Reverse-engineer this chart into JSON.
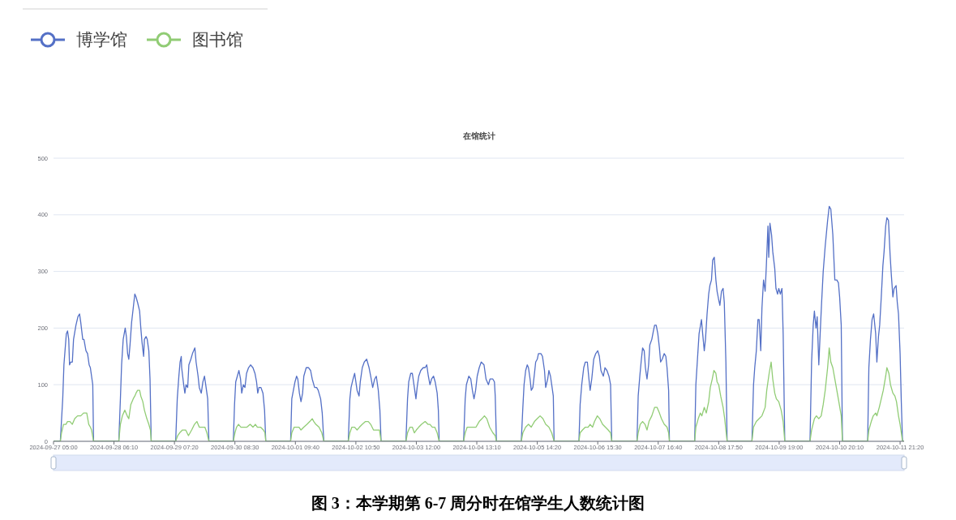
{
  "chart_data": {
    "type": "line",
    "title": "在馆统计",
    "series": [
      {
        "name": "博学馆",
        "color": "#5470c6",
        "x": [
          "2024-09-27T05:00",
          "2024-09-27T07:50",
          "2024-09-27T08:50",
          "2024-09-27T09:20",
          "2024-09-27T10:20",
          "2024-09-27T10:50",
          "2024-09-27T11:20",
          "2024-09-27T11:40",
          "2024-09-27T12:10",
          "2024-09-27T12:50",
          "2024-09-27T13:20",
          "2024-09-27T14:20",
          "2024-09-27T15:10",
          "2024-09-27T15:50",
          "2024-09-27T16:20",
          "2024-09-27T17:10",
          "2024-09-27T17:40",
          "2024-09-27T18:30",
          "2024-09-27T19:10",
          "2024-09-27T19:50",
          "2024-09-27T20:20",
          "2024-09-27T20:50",
          "2024-09-27T21:20",
          "2024-09-27T21:40",
          "2024-09-28T08:10",
          "2024-09-28T08:50",
          "2024-09-28T09:20",
          "2024-09-28T10:00",
          "2024-09-28T10:50",
          "2024-09-28T11:20",
          "2024-09-28T11:50",
          "2024-09-28T12:20",
          "2024-09-28T12:50",
          "2024-09-28T13:30",
          "2024-09-28T14:10",
          "2024-09-28T14:50",
          "2024-09-28T15:20",
          "2024-09-28T16:00",
          "2024-09-28T16:50",
          "2024-09-28T17:20",
          "2024-09-28T17:50",
          "2024-09-28T18:30",
          "2024-09-28T18:50",
          "2024-09-28T19:30",
          "2024-09-28T20:00",
          "2024-09-28T20:40",
          "2024-09-28T21:10",
          "2024-09-28T21:40",
          "2024-09-29T07:50",
          "2024-09-29T08:30",
          "2024-09-29T09:10",
          "2024-09-29T09:40",
          "2024-09-29T10:10",
          "2024-09-29T10:20",
          "2024-09-29T11:10",
          "2024-09-29T11:40",
          "2024-09-29T12:10",
          "2024-09-29T12:50",
          "2024-09-29T13:20",
          "2024-09-29T14:10",
          "2024-09-29T14:50",
          "2024-09-29T15:50",
          "2024-09-29T16:20",
          "2024-09-29T17:10",
          "2024-09-29T17:40",
          "2024-09-29T18:30",
          "2024-09-29T19:10",
          "2024-09-29T19:50",
          "2024-09-29T20:20",
          "2024-09-29T21:10",
          "2024-09-29T21:40",
          "2024-09-30T07:50",
          "2024-09-30T08:20",
          "2024-09-30T08:50",
          "2024-09-30T09:30",
          "2024-09-30T10:10",
          "2024-09-30T10:50",
          "2024-09-30T11:20",
          "2024-09-30T12:00",
          "2024-09-30T12:40",
          "2024-09-30T13:20",
          "2024-09-30T14:10",
          "2024-09-30T15:00",
          "2024-09-30T16:00",
          "2024-09-30T16:50",
          "2024-09-30T17:30",
          "2024-09-30T18:00",
          "2024-09-30T18:30",
          "2024-09-30T19:20",
          "2024-09-30T20:10",
          "2024-09-30T20:50",
          "2024-09-30T21:20",
          "2024-10-01T07:40",
          "2024-10-01T08:10",
          "2024-10-01T08:50",
          "2024-10-01T09:30",
          "2024-10-01T10:10",
          "2024-10-01T10:40",
          "2024-10-01T11:20",
          "2024-10-01T12:00",
          "2024-10-01T12:40",
          "2024-10-01T13:10",
          "2024-10-01T14:10",
          "2024-10-01T15:10",
          "2024-10-01T16:00",
          "2024-10-01T16:40",
          "2024-10-01T17:40",
          "2024-10-01T18:30",
          "2024-10-01T19:10",
          "2024-10-01T20:10",
          "2024-10-01T20:50",
          "2024-10-01T21:30",
          "2024-10-02T07:40",
          "2024-10-02T08:20",
          "2024-10-02T08:50",
          "2024-10-02T09:40",
          "2024-10-02T10:20",
          "2024-10-02T10:50",
          "2024-10-02T11:20",
          "2024-10-02T12:10",
          "2024-10-02T12:40",
          "2024-10-02T13:30",
          "2024-10-02T14:20",
          "2024-10-02T15:20",
          "2024-10-02T16:20",
          "2024-10-02T17:00",
          "2024-10-02T17:50",
          "2024-10-02T18:40",
          "2024-10-02T19:20",
          "2024-10-02T20:10",
          "2024-10-02T20:50",
          "2024-10-02T21:20",
          "2024-10-03T07:40",
          "2024-10-03T08:20",
          "2024-10-03T08:50",
          "2024-10-03T09:40",
          "2024-10-03T10:20",
          "2024-10-03T11:00",
          "2024-10-03T11:50",
          "2024-10-03T12:20",
          "2024-10-03T13:00",
          "2024-10-03T13:50",
          "2024-10-03T14:50",
          "2024-10-03T15:40",
          "2024-10-03T16:20",
          "2024-10-03T17:00",
          "2024-10-03T17:40",
          "2024-10-03T18:20",
          "2024-10-03T19:10",
          "2024-10-03T19:50",
          "2024-10-03T20:40",
          "2024-10-03T21:10",
          "2024-10-03T21:30",
          "2024-10-04T07:40",
          "2024-10-04T08:20",
          "2024-10-04T08:50",
          "2024-10-04T09:50",
          "2024-10-04T10:40",
          "2024-10-04T11:20",
          "2024-10-04T12:00",
          "2024-10-04T12:40",
          "2024-10-04T13:20",
          "2024-10-04T14:10",
          "2024-10-04T15:00",
          "2024-10-04T16:10",
          "2024-10-04T17:00",
          "2024-10-04T18:00",
          "2024-10-04T18:40",
          "2024-10-04T19:50",
          "2024-10-04T20:30",
          "2024-10-04T20:50",
          "2024-10-04T21:20",
          "2024-10-05T07:40",
          "2024-10-05T08:20",
          "2024-10-05T08:50",
          "2024-10-05T09:30",
          "2024-10-05T10:10",
          "2024-10-05T10:40",
          "2024-10-05T11:20",
          "2024-10-05T11:50",
          "2024-10-05T12:30",
          "2024-10-05T13:10",
          "2024-10-05T13:40",
          "2024-10-05T14:20",
          "2024-10-05T14:50",
          "2024-10-05T15:50",
          "2024-10-05T16:30",
          "2024-10-05T17:20",
          "2024-10-05T17:50",
          "2024-10-05T18:40",
          "2024-10-05T19:10",
          "2024-10-05T19:50",
          "2024-10-05T20:20",
          "2024-10-05T21:00",
          "2024-10-05T21:20",
          "2024-10-06T07:40",
          "2024-10-06T08:10",
          "2024-10-06T08:50",
          "2024-10-06T09:40",
          "2024-10-06T10:20",
          "2024-10-06T11:10",
          "2024-10-06T11:50",
          "2024-10-06T12:20",
          "2024-10-06T13:00",
          "2024-10-06T13:50",
          "2024-10-06T14:40",
          "2024-10-06T15:30",
          "2024-10-06T16:10",
          "2024-10-06T16:50",
          "2024-10-06T17:50",
          "2024-10-06T18:30",
          "2024-10-06T19:20",
          "2024-10-06T20:10",
          "2024-10-06T20:50",
          "2024-10-06T21:20",
          "2024-10-07T07:50",
          "2024-10-07T08:20",
          "2024-10-07T09:00",
          "2024-10-07T09:40",
          "2024-10-07T10:10",
          "2024-10-07T10:50",
          "2024-10-07T11:20",
          "2024-10-07T12:00",
          "2024-10-07T12:40",
          "2024-10-07T13:10",
          "2024-10-07T14:00",
          "2024-10-07T14:40",
          "2024-10-07T15:10",
          "2024-10-07T15:50",
          "2024-10-07T16:30",
          "2024-10-07T17:10",
          "2024-10-07T17:40",
          "2024-10-07T18:20",
          "2024-10-07T19:10",
          "2024-10-07T19:50",
          "2024-10-07T20:20",
          "2024-10-07T21:00",
          "2024-10-07T21:20",
          "2024-10-08T07:50",
          "2024-10-08T08:20",
          "2024-10-08T09:00",
          "2024-10-08T09:40",
          "2024-10-08T10:40",
          "2024-10-08T11:10",
          "2024-10-08T11:50",
          "2024-10-08T12:20",
          "2024-10-08T13:00",
          "2024-10-08T13:40",
          "2024-10-08T14:10",
          "2024-10-08T14:50",
          "2024-10-08T15:20",
          "2024-10-08T16:00",
          "2024-10-08T16:40",
          "2024-10-08T17:10",
          "2024-10-08T17:50",
          "2024-10-08T18:20",
          "2024-10-08T19:00",
          "2024-10-08T19:40",
          "2024-10-08T20:10",
          "2024-10-08T20:50",
          "2024-10-08T21:20",
          "2024-10-09T07:40",
          "2024-10-09T08:20",
          "2024-10-09T08:50",
          "2024-10-09T09:30",
          "2024-10-09T10:10",
          "2024-10-09T10:40",
          "2024-10-09T11:20",
          "2024-10-09T11:50",
          "2024-10-09T12:30",
          "2024-10-09T13:10",
          "2024-10-09T13:40",
          "2024-10-09T14:20",
          "2024-10-09T14:40",
          "2024-10-09T15:10",
          "2024-10-09T15:50",
          "2024-10-09T16:20",
          "2024-10-09T17:10",
          "2024-10-09T17:40",
          "2024-10-09T18:20",
          "2024-10-09T18:50",
          "2024-10-09T19:30",
          "2024-10-09T20:10",
          "2024-10-09T20:40",
          "2024-10-09T21:20",
          "2024-10-10T07:50",
          "2024-10-10T08:30",
          "2024-10-10T09:10",
          "2024-10-10T09:40",
          "2024-10-10T10:20",
          "2024-10-10T10:50",
          "2024-10-10T11:30",
          "2024-10-10T12:10",
          "2024-10-10T12:40",
          "2024-10-10T13:20",
          "2024-10-10T14:10",
          "2024-10-10T15:10",
          "2024-10-10T15:50",
          "2024-10-10T16:30",
          "2024-10-10T17:20",
          "2024-10-10T18:10",
          "2024-10-10T19:00",
          "2024-10-10T19:40",
          "2024-10-10T20:10",
          "2024-10-10T20:50",
          "2024-10-10T21:20",
          "2024-10-11T07:50",
          "2024-10-11T08:20",
          "2024-10-11T09:00",
          "2024-10-11T09:40",
          "2024-10-11T10:20",
          "2024-10-11T11:10",
          "2024-10-11T11:40",
          "2024-10-11T12:20",
          "2024-10-11T12:50",
          "2024-10-11T13:30",
          "2024-10-11T14:10",
          "2024-10-11T14:40",
          "2024-10-11T15:20",
          "2024-10-11T15:50",
          "2024-10-11T16:30",
          "2024-10-11T17:10",
          "2024-10-11T17:40",
          "2024-10-11T18:20",
          "2024-10-11T18:50",
          "2024-10-11T19:40",
          "2024-10-11T20:10",
          "2024-10-11T20:40",
          "2024-10-11T21:20",
          "2024-10-11T21:50",
          "2024-10-11T22:20",
          "2024-10-11T23:00"
        ],
        "values": [
          0,
          0,
          75,
          135,
          190,
          195,
          180,
          135,
          140,
          140,
          180,
          205,
          220,
          225,
          210,
          180,
          180,
          160,
          155,
          135,
          130,
          115,
          100,
          0,
          0,
          75,
          135,
          180,
          200,
          185,
          155,
          145,
          170,
          210,
          235,
          260,
          255,
          245,
          230,
          200,
          175,
          150,
          180,
          185,
          180,
          160,
          110,
          0,
          0,
          75,
          115,
          140,
          150,
          130,
          100,
          85,
          100,
          95,
          135,
          145,
          155,
          165,
          140,
          115,
          95,
          85,
          105,
          115,
          100,
          75,
          0,
          0,
          65,
          105,
          115,
          125,
          110,
          85,
          100,
          95,
          120,
          130,
          135,
          130,
          120,
          105,
          85,
          95,
          95,
          85,
          55,
          0,
          0,
          75,
          90,
          105,
          115,
          110,
          85,
          70,
          85,
          115,
          130,
          130,
          125,
          110,
          95,
          95,
          90,
          75,
          50,
          0,
          0,
          75,
          95,
          110,
          120,
          105,
          90,
          80,
          105,
          130,
          140,
          145,
          130,
          115,
          95,
          110,
          115,
          90,
          55,
          0,
          0,
          75,
          105,
          120,
          120,
          100,
          75,
          95,
          115,
          125,
          130,
          130,
          135,
          115,
          100,
          110,
          115,
          105,
          85,
          55,
          0,
          0,
          75,
          100,
          115,
          110,
          90,
          75,
          90,
          115,
          130,
          140,
          135,
          110,
          100,
          110,
          110,
          105,
          80,
          0,
          0,
          60,
          100,
          125,
          135,
          130,
          110,
          90,
          95,
          120,
          140,
          145,
          155,
          155,
          150,
          125,
          95,
          110,
          125,
          115,
          100,
          80,
          0,
          0,
          65,
          100,
          130,
          140,
          140,
          110,
          90,
          110,
          145,
          155,
          160,
          150,
          125,
          115,
          130,
          125,
          115,
          100,
          0,
          0,
          80,
          115,
          145,
          165,
          160,
          130,
          110,
          135,
          170,
          180,
          195,
          205,
          205,
          190,
          165,
          140,
          145,
          155,
          150,
          130,
          90,
          0,
          0,
          100,
          145,
          190,
          215,
          190,
          160,
          180,
          225,
          260,
          275,
          285,
          320,
          325,
          285,
          265,
          250,
          240,
          265,
          270,
          245,
          140,
          0,
          0,
          100,
          130,
          160,
          215,
          215,
          160,
          235,
          285,
          265,
          310,
          380,
          325,
          385,
          365,
          335,
          305,
          270,
          260,
          270,
          260,
          270,
          190,
          0,
          0,
          140,
          205,
          230,
          200,
          220,
          135,
          200,
          245,
          300,
          345,
          390,
          415,
          410,
          365,
          285,
          285,
          280,
          255,
          205,
          0,
          0,
          130,
          180,
          215,
          225,
          190,
          140,
          185,
          205,
          255,
          310,
          335,
          380,
          395,
          390,
          330,
          295,
          255,
          270,
          275,
          245,
          225,
          155,
          70,
          0,
          0
        ]
      },
      {
        "name": "图书馆",
        "color": "#91cc75",
        "x": [
          "2024-09-27T05:00",
          "2024-09-27T07:50",
          "2024-09-27T08:20",
          "2024-09-27T09:10",
          "2024-09-27T10:10",
          "2024-09-27T10:50",
          "2024-09-27T11:50",
          "2024-09-27T12:50",
          "2024-09-27T13:50",
          "2024-09-27T15:00",
          "2024-09-27T16:20",
          "2024-09-27T17:30",
          "2024-09-27T18:10",
          "2024-09-27T18:50",
          "2024-09-27T19:40",
          "2024-09-27T20:20",
          "2024-09-27T20:50",
          "2024-09-27T21:40",
          "2024-09-28T08:10",
          "2024-09-28T08:50",
          "2024-09-28T09:40",
          "2024-09-28T10:40",
          "2024-09-28T11:40",
          "2024-09-28T12:20",
          "2024-09-28T13:10",
          "2024-09-28T14:10",
          "2024-09-28T14:50",
          "2024-09-28T15:20",
          "2024-09-28T16:00",
          "2024-09-28T16:50",
          "2024-09-28T17:20",
          "2024-09-28T18:10",
          "2024-09-28T18:50",
          "2024-09-28T19:50",
          "2024-09-28T20:40",
          "2024-09-28T21:20",
          "2024-09-28T21:40",
          "2024-09-29T07:50",
          "2024-09-29T08:40",
          "2024-09-29T09:30",
          "2024-09-29T10:40",
          "2024-09-29T12:00",
          "2024-09-29T13:10",
          "2024-09-29T14:30",
          "2024-09-29T15:40",
          "2024-09-29T16:40",
          "2024-09-29T17:40",
          "2024-09-29T18:50",
          "2024-09-29T20:00",
          "2024-09-29T20:50",
          "2024-09-29T21:40",
          "2024-09-30T07:50",
          "2024-09-30T08:30",
          "2024-09-30T09:10",
          "2024-09-30T10:00",
          "2024-09-30T11:00",
          "2024-09-30T12:20",
          "2024-09-30T13:30",
          "2024-09-30T14:50",
          "2024-09-30T16:00",
          "2024-09-30T17:00",
          "2024-09-30T17:50",
          "2024-09-30T19:10",
          "2024-09-30T20:20",
          "2024-09-30T21:00",
          "2024-09-30T21:20",
          "2024-10-01T07:40",
          "2024-10-01T08:10",
          "2024-10-01T09:10",
          "2024-10-01T10:10",
          "2024-10-01T11:10",
          "2024-10-01T12:00",
          "2024-10-01T13:10",
          "2024-10-01T14:30",
          "2024-10-01T15:40",
          "2024-10-01T16:40",
          "2024-10-01T17:20",
          "2024-10-01T18:10",
          "2024-10-01T19:30",
          "2024-10-01T20:40",
          "2024-10-01T21:30",
          "2024-10-02T07:40",
          "2024-10-02T08:20",
          "2024-10-02T09:10",
          "2024-10-02T10:20",
          "2024-10-02T11:20",
          "2024-10-02T12:20",
          "2024-10-02T13:30",
          "2024-10-02T14:50",
          "2024-10-02T16:00",
          "2024-10-02T17:00",
          "2024-10-02T18:10",
          "2024-10-02T19:20",
          "2024-10-02T20:40",
          "2024-10-02T21:20",
          "2024-10-03T07:40",
          "2024-10-03T08:20",
          "2024-10-03T09:20",
          "2024-10-03T10:20",
          "2024-10-03T11:10",
          "2024-10-03T12:00",
          "2024-10-03T13:00",
          "2024-10-03T14:10",
          "2024-10-03T15:40",
          "2024-10-03T16:50",
          "2024-10-03T17:40",
          "2024-10-03T18:40",
          "2024-10-03T19:40",
          "2024-10-03T20:40",
          "2024-10-03T21:30",
          "2024-10-04T07:40",
          "2024-10-04T08:20",
          "2024-10-04T09:10",
          "2024-10-04T10:30",
          "2024-10-04T11:40",
          "2024-10-04T12:50",
          "2024-10-04T14:10",
          "2024-10-04T15:20",
          "2024-10-04T16:20",
          "2024-10-04T17:20",
          "2024-10-04T18:30",
          "2024-10-04T19:50",
          "2024-10-04T20:50",
          "2024-10-04T21:20",
          "2024-10-05T07:40",
          "2024-10-05T08:20",
          "2024-10-05T09:30",
          "2024-10-05T10:40",
          "2024-10-05T11:50",
          "2024-10-05T13:10",
          "2024-10-05T14:20",
          "2024-10-05T15:30",
          "2024-10-05T16:40",
          "2024-10-05T17:50",
          "2024-10-05T19:10",
          "2024-10-05T20:20",
          "2024-10-05T21:20",
          "2024-10-06T07:40",
          "2024-10-06T08:10",
          "2024-10-06T09:10",
          "2024-10-06T10:20",
          "2024-10-06T11:30",
          "2024-10-06T12:20",
          "2024-10-06T13:20",
          "2024-10-06T14:10",
          "2024-10-06T15:20",
          "2024-10-06T16:20",
          "2024-10-06T17:30",
          "2024-10-06T18:40",
          "2024-10-06T19:50",
          "2024-10-06T20:50",
          "2024-10-06T21:20",
          "2024-10-07T07:50",
          "2024-10-07T08:20",
          "2024-10-07T09:10",
          "2024-10-07T10:10",
          "2024-10-07T11:10",
          "2024-10-07T12:00",
          "2024-10-07T12:50",
          "2024-10-07T14:00",
          "2024-10-07T15:10",
          "2024-10-07T16:10",
          "2024-10-07T17:10",
          "2024-10-07T18:00",
          "2024-10-07T19:10",
          "2024-10-07T20:20",
          "2024-10-07T21:00",
          "2024-10-07T21:20",
          "2024-10-08T07:50",
          "2024-10-08T08:20",
          "2024-10-08T09:20",
          "2024-10-08T10:10",
          "2024-10-08T10:50",
          "2024-10-08T11:50",
          "2024-10-08T12:40",
          "2024-10-08T13:40",
          "2024-10-08T14:20",
          "2024-10-08T15:10",
          "2024-10-08T15:50",
          "2024-10-08T16:40",
          "2024-10-08T17:10",
          "2024-10-08T17:50",
          "2024-10-08T18:40",
          "2024-10-08T19:40",
          "2024-10-08T20:20",
          "2024-10-08T21:20",
          "2024-10-09T07:40",
          "2024-10-09T08:20",
          "2024-10-09T09:30",
          "2024-10-09T10:40",
          "2024-10-09T11:50",
          "2024-10-09T13:10",
          "2024-10-09T13:50",
          "2024-10-09T14:50",
          "2024-10-09T15:40",
          "2024-10-09T16:20",
          "2024-10-09T17:10",
          "2024-10-09T17:50",
          "2024-10-09T18:50",
          "2024-10-09T19:50",
          "2024-10-09T20:40",
          "2024-10-09T21:20",
          "2024-10-10T07:50",
          "2024-10-10T08:30",
          "2024-10-10T09:40",
          "2024-10-10T10:30",
          "2024-10-10T11:30",
          "2024-10-10T12:30",
          "2024-10-10T13:20",
          "2024-10-10T14:10",
          "2024-10-10T15:10",
          "2024-10-10T15:50",
          "2024-10-10T16:30",
          "2024-10-10T17:20",
          "2024-10-10T18:10",
          "2024-10-10T19:00",
          "2024-10-10T19:50",
          "2024-10-10T20:50",
          "2024-10-10T21:20",
          "2024-10-11T07:50",
          "2024-10-11T08:20",
          "2024-10-11T09:20",
          "2024-10-11T10:10",
          "2024-10-11T11:10",
          "2024-10-11T11:40",
          "2024-10-11T12:40",
          "2024-10-11T13:30",
          "2024-10-11T14:20",
          "2024-10-11T15:20",
          "2024-10-11T15:50",
          "2024-10-11T16:40",
          "2024-10-11T17:20",
          "2024-10-11T18:20",
          "2024-10-11T19:10",
          "2024-10-11T19:50",
          "2024-10-11T20:40",
          "2024-10-11T21:20",
          "2024-10-11T21:50",
          "2024-10-11T22:20",
          "2024-10-11T23:00"
        ],
        "values": [
          0,
          0,
          15,
          30,
          30,
          35,
          35,
          30,
          40,
          45,
          45,
          50,
          50,
          50,
          30,
          25,
          20,
          0,
          0,
          30,
          45,
          55,
          45,
          40,
          65,
          75,
          80,
          85,
          90,
          90,
          80,
          70,
          55,
          40,
          30,
          20,
          0,
          0,
          10,
          15,
          20,
          20,
          10,
          20,
          30,
          35,
          25,
          25,
          25,
          15,
          0,
          0,
          15,
          25,
          30,
          25,
          25,
          25,
          30,
          25,
          30,
          25,
          25,
          20,
          15,
          0,
          0,
          15,
          25,
          25,
          25,
          20,
          25,
          30,
          35,
          40,
          35,
          30,
          25,
          15,
          0,
          0,
          15,
          25,
          25,
          20,
          25,
          30,
          35,
          35,
          30,
          20,
          20,
          20,
          0,
          0,
          15,
          25,
          25,
          15,
          20,
          25,
          30,
          35,
          30,
          30,
          25,
          25,
          15,
          0,
          0,
          15,
          25,
          25,
          25,
          25,
          35,
          40,
          45,
          40,
          25,
          15,
          10,
          0,
          0,
          15,
          25,
          30,
          25,
          35,
          40,
          45,
          40,
          30,
          25,
          15,
          0,
          0,
          15,
          20,
          25,
          25,
          30,
          25,
          35,
          45,
          40,
          30,
          25,
          20,
          15,
          0,
          0,
          15,
          30,
          35,
          30,
          20,
          35,
          45,
          60,
          60,
          50,
          40,
          30,
          25,
          15,
          0,
          0,
          25,
          40,
          50,
          45,
          60,
          50,
          70,
          95,
          110,
          125,
          120,
          105,
          100,
          80,
          60,
          40,
          0,
          0,
          25,
          35,
          40,
          45,
          60,
          90,
          120,
          140,
          110,
          85,
          75,
          70,
          55,
          35,
          0,
          0,
          20,
          40,
          45,
          40,
          45,
          65,
          90,
          130,
          165,
          140,
          130,
          110,
          90,
          70,
          45,
          0,
          0,
          20,
          35,
          45,
          50,
          45,
          60,
          75,
          90,
          115,
          130,
          120,
          100,
          85,
          80,
          70,
          45,
          30,
          15,
          0,
          0
        ]
      }
    ],
    "xlim": [
      "2024-09-27T05:00",
      "2024-10-11T23:00"
    ],
    "xticks": [
      {
        "value": "2024-09-27T05:00",
        "label": "2024-09-27 05:00"
      },
      {
        "value": "2024-09-28T06:10",
        "label": "2024-09-28 06:10"
      },
      {
        "value": "2024-09-29T07:20",
        "label": "2024-09-29 07:20"
      },
      {
        "value": "2024-09-30T08:30",
        "label": "2024-09-30 08:30"
      },
      {
        "value": "2024-10-01T09:40",
        "label": "2024-10-01 09:40"
      },
      {
        "value": "2024-10-02T10:50",
        "label": "2024-10-02 10:50"
      },
      {
        "value": "2024-10-03T12:00",
        "label": "2024-10-03 12:00"
      },
      {
        "value": "2024-10-04T13:10",
        "label": "2024-10-04 13:10"
      },
      {
        "value": "2024-10-05T14:20",
        "label": "2024-10-05 14:20"
      },
      {
        "value": "2024-10-06T15:30",
        "label": "2024-10-06 15:30"
      },
      {
        "value": "2024-10-07T16:40",
        "label": "2024-10-07 16:40"
      },
      {
        "value": "2024-10-08T17:50",
        "label": "2024-10-08 17:50"
      },
      {
        "value": "2024-10-09T19:00",
        "label": "2024-10-09 19:00"
      },
      {
        "value": "2024-10-10T20:10",
        "label": "2024-10-10 20:10"
      },
      {
        "value": "2024-10-11T21:20",
        "label": "2024-10-11 21:20"
      }
    ],
    "ylim": [
      0,
      500
    ],
    "yticks": [
      0,
      100,
      200,
      300,
      400,
      500
    ],
    "grid": "y",
    "legend": "top left",
    "annotations": [
      "图 3：本学期第 6-7 周分时在馆学生人数统计图"
    ]
  }
}
